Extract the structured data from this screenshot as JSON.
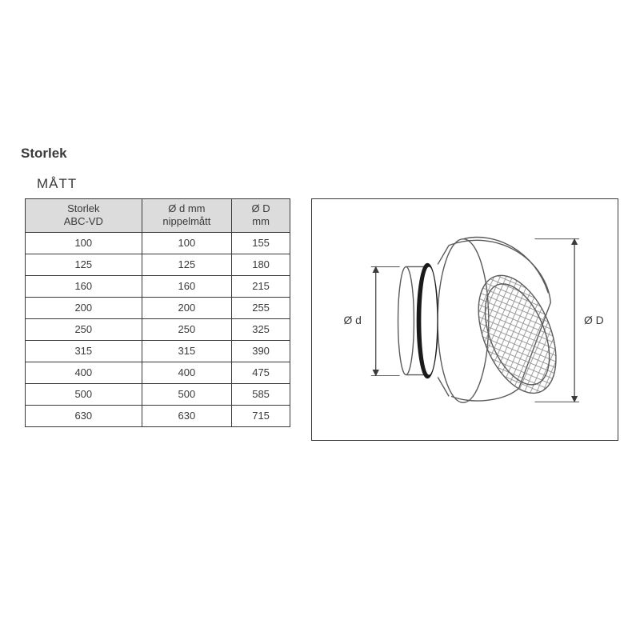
{
  "page_title": "Storlek",
  "section_title": "MÅTT",
  "table": {
    "columns": [
      {
        "line1": "Storlek",
        "line2": "ABC-VD",
        "width": "44%"
      },
      {
        "line1": "Ø d mm",
        "line2": "nippelmått",
        "width": "34%"
      },
      {
        "line1": "Ø D",
        "line2": "mm",
        "width": "22%"
      }
    ],
    "rows": [
      [
        "100",
        "100",
        "155"
      ],
      [
        "125",
        "125",
        "180"
      ],
      [
        "160",
        "160",
        "215"
      ],
      [
        "200",
        "200",
        "255"
      ],
      [
        "250",
        "250",
        "325"
      ],
      [
        "315",
        "315",
        "390"
      ],
      [
        "400",
        "400",
        "475"
      ],
      [
        "500",
        "500",
        "585"
      ],
      [
        "630",
        "630",
        "715"
      ]
    ],
    "header_bg": "#dcdcdc",
    "border_color": "#3a3a3a",
    "font_size": 13
  },
  "diagram": {
    "label_left": "Ø d",
    "label_right": "Ø D",
    "stroke": "#5a5a5a",
    "dim_stroke": "#3a3a3a",
    "mesh_stroke": "#8a8a8a"
  },
  "colors": {
    "background": "#ffffff",
    "text": "#3a3a3a"
  }
}
